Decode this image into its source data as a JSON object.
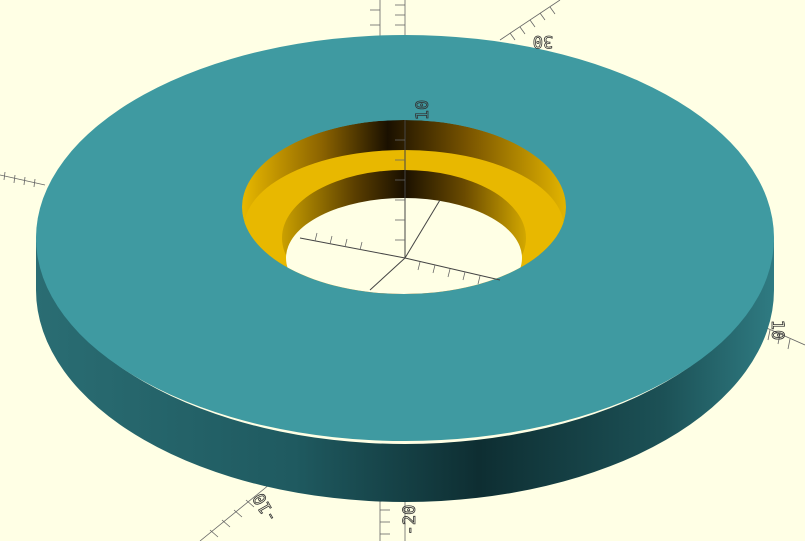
{
  "viewer": {
    "background_color": "#ffffe5",
    "model_color": "#3f9aa1",
    "hole_color": "#e8b800",
    "axis_color": "#555555"
  },
  "axes": {
    "labels": [
      {
        "id": "y-pos",
        "text": "30"
      },
      {
        "id": "z-pos",
        "text": "10"
      },
      {
        "id": "x-pos",
        "text": "10"
      },
      {
        "id": "y-neg",
        "text": "-10"
      },
      {
        "id": "z-neg",
        "text": "-20"
      }
    ]
  }
}
